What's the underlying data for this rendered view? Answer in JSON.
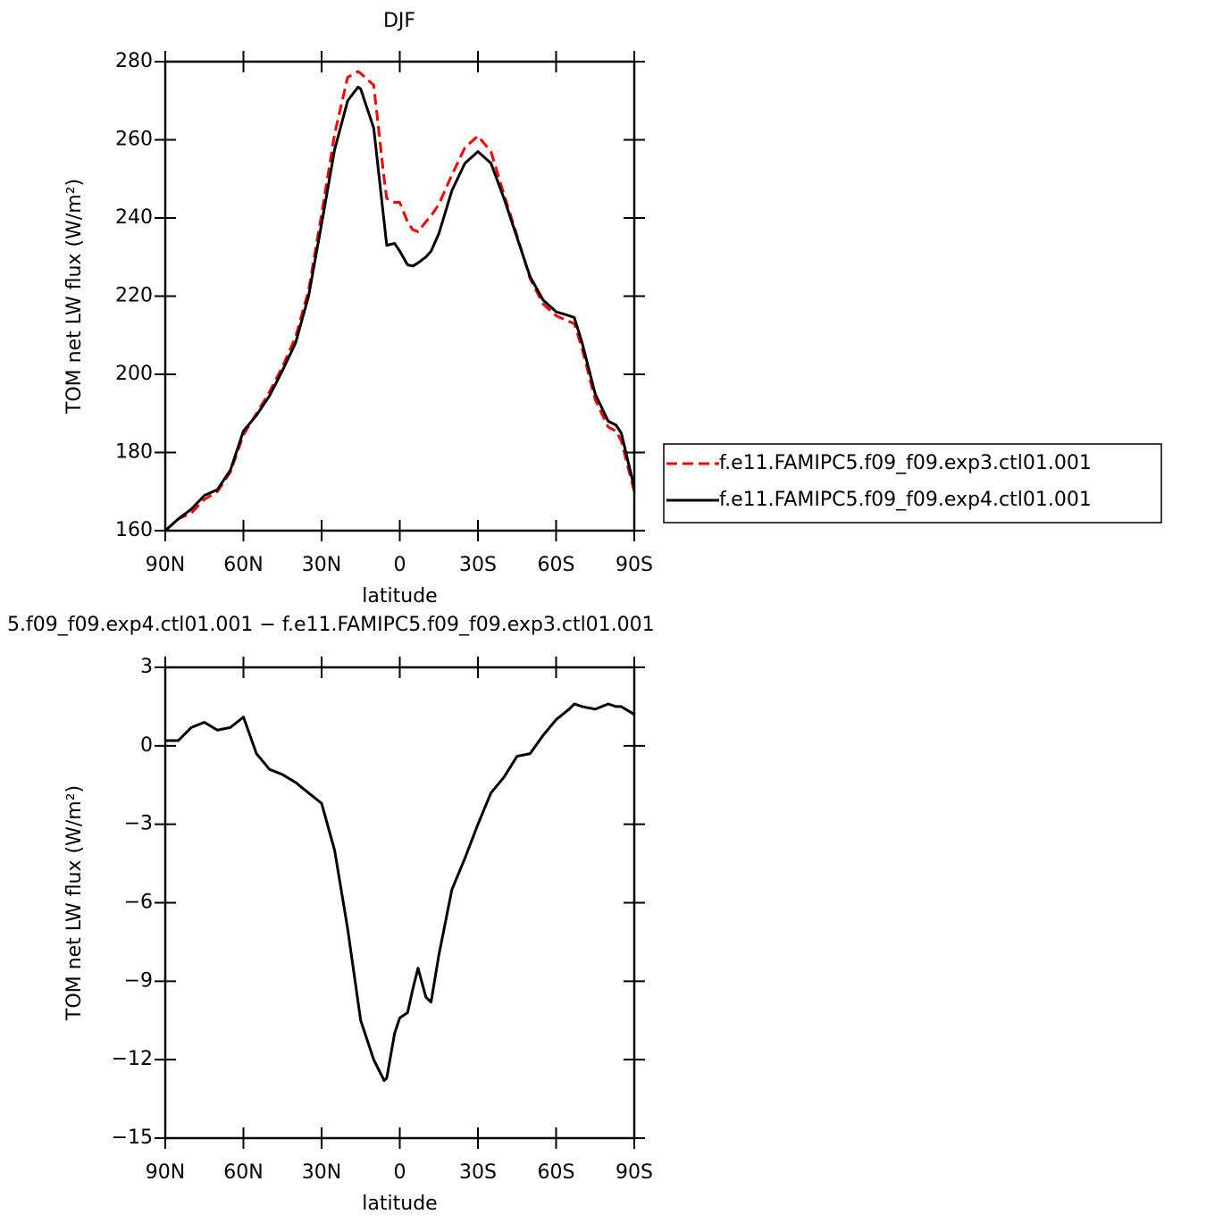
{
  "chart_data": [
    {
      "type": "line",
      "title": "DJF",
      "xlabel": "latitude",
      "ylabel": "TOM net LW flux (W/m²)",
      "x": [
        90,
        85,
        80,
        75,
        70,
        65,
        60,
        55,
        50,
        45,
        40,
        35,
        30,
        25,
        20,
        16,
        15,
        10,
        6,
        5,
        2,
        0,
        -3,
        -5,
        -7,
        -10,
        -12,
        -15,
        -20,
        -25,
        -30,
        -35,
        -40,
        -45,
        -50,
        -55,
        -60,
        -65,
        -67,
        -70,
        -75,
        -80,
        -83,
        -85,
        -90
      ],
      "xlim": [
        90,
        -90
      ],
      "xticks": [
        {
          "value": 90,
          "label": "90N"
        },
        {
          "value": 60,
          "label": "60N"
        },
        {
          "value": 30,
          "label": "30N"
        },
        0,
        {
          "value": -30,
          "label": "30S"
        },
        {
          "value": -60,
          "label": "60S"
        },
        {
          "value": -90,
          "label": "90S"
        }
      ],
      "ylim": [
        160,
        280
      ],
      "yticks": [
        160,
        180,
        200,
        220,
        240,
        260,
        280
      ],
      "legend": "right",
      "series": [
        {
          "name": "f.e11.FAMIPC5.f09_f09.exp3.ctl01.001",
          "color": "#ff0000",
          "line_style": "dashed",
          "values": [
            160,
            163,
            164.5,
            168,
            170,
            175,
            184.5,
            190,
            195.5,
            202,
            209.5,
            221.5,
            241,
            261.5,
            276,
            277.5,
            277,
            274,
            250,
            245,
            244,
            244,
            239,
            237,
            236.5,
            239,
            240.5,
            243.5,
            251,
            258,
            261,
            257,
            246,
            235.5,
            224.5,
            218,
            215,
            213.5,
            213,
            206.5,
            193.5,
            186.5,
            185.5,
            183,
            170
          ]
        },
        {
          "name": "f.e11.FAMIPC5.f09_f09.exp4.ctl01.001",
          "color": "#000000",
          "line_style": "solid",
          "values": [
            160,
            163,
            165.5,
            169,
            170.5,
            175.5,
            185.5,
            189.5,
            194.5,
            201,
            208,
            220,
            238.5,
            257.5,
            270,
            273.5,
            273,
            263,
            239,
            233,
            233.5,
            231.5,
            228,
            227.7,
            228.5,
            230,
            231.5,
            236,
            247,
            254,
            257,
            254,
            245,
            235,
            225,
            219,
            216,
            215,
            214.5,
            208,
            195,
            188,
            187,
            185,
            171
          ]
        }
      ]
    },
    {
      "type": "line",
      "title": "5.f09_f09.exp4.ctl01.001 − f.e11.FAMIPC5.f09_f09.exp3.ctl01.001",
      "xlabel": "latitude",
      "ylabel": "TOM net LW flux (W/m²)",
      "x": [
        90,
        85,
        80,
        75,
        70,
        65,
        60,
        55,
        50,
        45,
        40,
        35,
        30,
        25,
        20,
        16,
        15,
        10,
        6,
        5,
        2,
        0,
        -3,
        -5,
        -7,
        -10,
        -12,
        -15,
        -20,
        -25,
        -30,
        -35,
        -40,
        -45,
        -50,
        -55,
        -60,
        -65,
        -67,
        -70,
        -75,
        -80,
        -83,
        -85,
        -90
      ],
      "xlim": [
        90,
        -90
      ],
      "xticks": [
        {
          "value": 90,
          "label": "90N"
        },
        {
          "value": 60,
          "label": "60N"
        },
        {
          "value": 30,
          "label": "30N"
        },
        0,
        {
          "value": -30,
          "label": "30S"
        },
        {
          "value": -60,
          "label": "60S"
        },
        {
          "value": -90,
          "label": "90S"
        }
      ],
      "ylim": [
        -15,
        3
      ],
      "yticks": [
        {
          "value": -15,
          "label": "−15"
        },
        {
          "value": -12,
          "label": "−12"
        },
        {
          "value": -9,
          "label": "−9"
        },
        {
          "value": -6,
          "label": "−6"
        },
        {
          "value": -3,
          "label": "−3"
        },
        0,
        3
      ],
      "series": [
        {
          "color": "#000000",
          "line_style": "solid",
          "values": [
            0.2,
            0.2,
            0.7,
            0.9,
            0.6,
            0.7,
            1.1,
            -0.3,
            -0.9,
            -1.1,
            -1.4,
            -1.8,
            -2.2,
            -4,
            -7,
            -9.8,
            -10.5,
            -12,
            -12.8,
            -12.7,
            -11,
            -10.4,
            -10.2,
            -9.3,
            -8.5,
            -9.6,
            -9.8,
            -8,
            -5.5,
            -4.3,
            -3,
            -1.8,
            -1.2,
            -0.4,
            -0.3,
            0.4,
            1.0,
            1.4,
            1.6,
            1.5,
            1.4,
            1.6,
            1.5,
            1.5,
            1.2
          ]
        }
      ]
    }
  ]
}
